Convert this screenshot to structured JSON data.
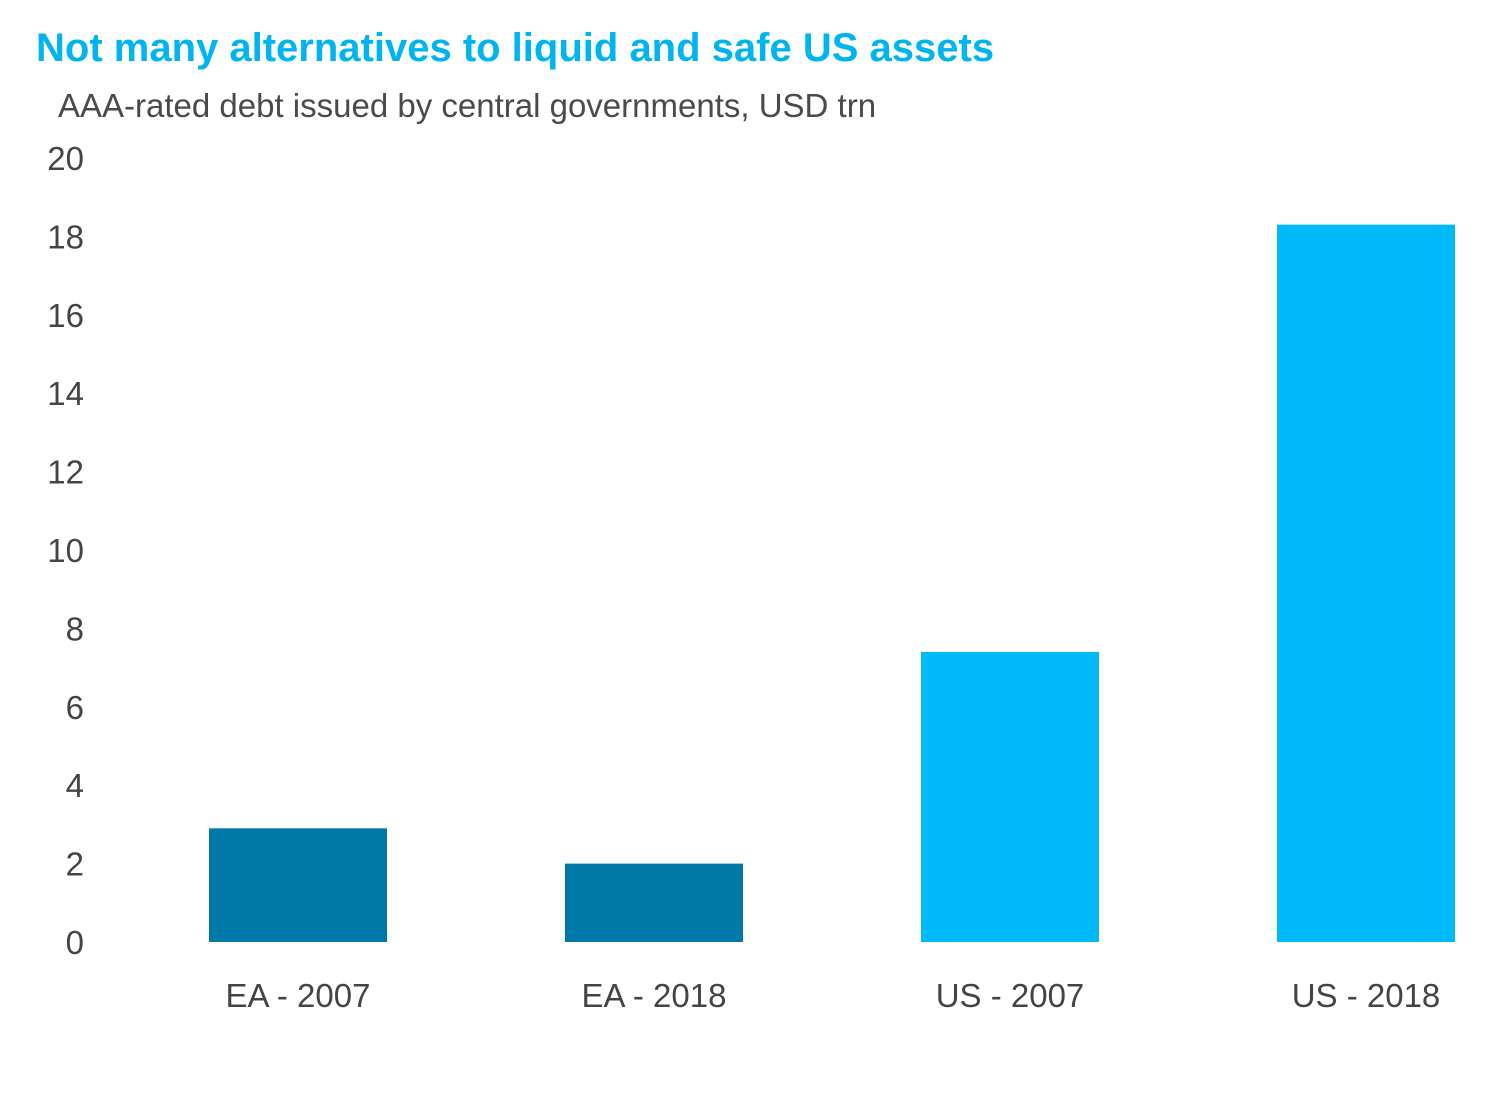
{
  "chart_data": {
    "type": "bar",
    "title": "Not many alternatives to liquid and safe US assets",
    "subtitle": "AAA-rated debt issued by central governments, USD trn",
    "categories": [
      "EA - 2007",
      "EA - 2018",
      "US - 2007",
      "US - 2018"
    ],
    "values": [
      2.9,
      2.0,
      7.4,
      18.3
    ],
    "bar_colors": [
      "#0079a8",
      "#0079a8",
      "#00b9f9",
      "#00b9f9"
    ],
    "ylim": [
      0,
      20
    ],
    "yticks": [
      0,
      2,
      4,
      6,
      8,
      10,
      12,
      14,
      16,
      18,
      20
    ],
    "grid": false,
    "legend": "none"
  }
}
